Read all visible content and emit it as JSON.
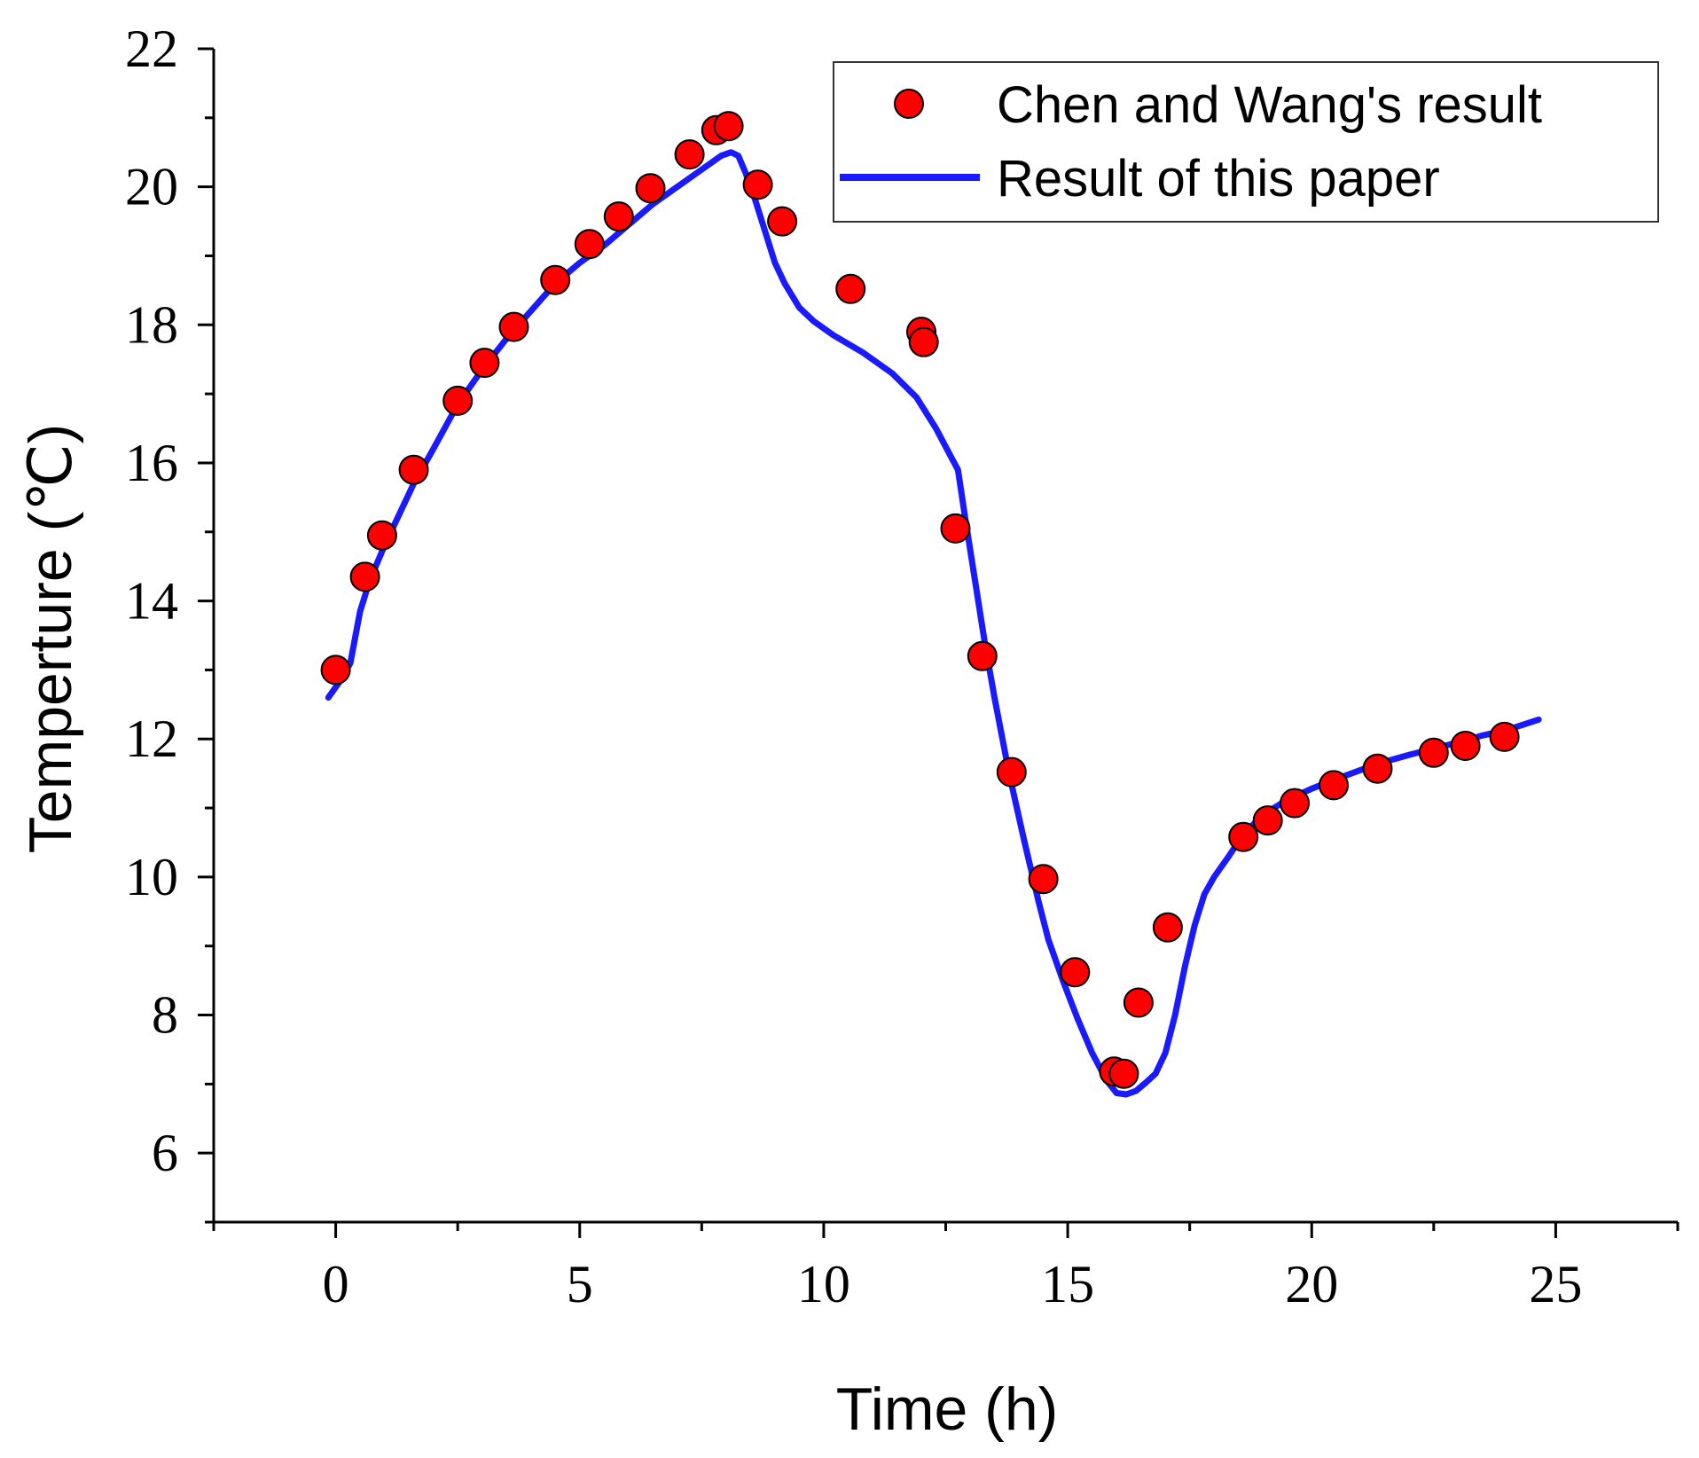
{
  "chart_data": {
    "type": "scatter+line",
    "xlabel": "Time (h)",
    "ylabel": "Temperture (℃)",
    "xlim": [
      -2.5,
      27.5
    ],
    "ylim": [
      5,
      22
    ],
    "x_ticks": [
      0,
      5,
      10,
      15,
      20,
      25
    ],
    "y_ticks": [
      6,
      8,
      10,
      12,
      14,
      16,
      18,
      20,
      22
    ],
    "legend_position": "top-right",
    "colors": {
      "points": "#ff0000",
      "line": "#1a1aff",
      "axis": "#000000"
    },
    "series": [
      {
        "name": "Chen and Wang's result",
        "kind": "scatter",
        "x": [
          0.0,
          0.6,
          0.95,
          1.6,
          2.5,
          3.05,
          3.65,
          4.5,
          5.2,
          5.8,
          6.45,
          7.25,
          7.8,
          8.05,
          8.65,
          9.15,
          10.55,
          12.0,
          12.05,
          12.7,
          13.25,
          13.85,
          14.5,
          15.15,
          15.95,
          16.15,
          16.45,
          17.05,
          18.6,
          19.1,
          19.65,
          20.45,
          21.35,
          22.5,
          23.15,
          23.95
        ],
        "y": [
          13.0,
          14.35,
          14.95,
          15.9,
          16.9,
          17.45,
          17.97,
          18.65,
          19.17,
          19.57,
          19.98,
          20.47,
          20.82,
          20.88,
          20.03,
          19.5,
          18.52,
          17.9,
          17.75,
          15.05,
          13.2,
          11.52,
          9.97,
          8.62,
          7.18,
          7.15,
          8.18,
          9.27,
          10.58,
          10.82,
          11.07,
          11.33,
          11.57,
          11.8,
          11.9,
          12.03
        ]
      },
      {
        "name": "Result of this paper",
        "kind": "line",
        "x": [
          -0.15,
          0.1,
          0.3,
          0.5,
          0.7,
          1.0,
          1.3,
          1.6,
          2.0,
          2.5,
          3.0,
          3.5,
          4.0,
          4.5,
          5.0,
          5.5,
          6.0,
          6.5,
          7.0,
          7.5,
          7.9,
          8.1,
          8.25,
          8.4,
          8.6,
          8.8,
          9.0,
          9.2,
          9.5,
          9.8,
          10.2,
          10.8,
          11.4,
          11.9,
          12.3,
          12.6,
          12.75,
          12.9,
          13.1,
          13.3,
          13.5,
          13.8,
          14.1,
          14.4,
          14.6,
          14.9,
          15.2,
          15.5,
          15.8,
          16.0,
          16.2,
          16.4,
          16.6,
          16.8,
          17.0,
          17.2,
          17.4,
          17.6,
          17.8,
          18.0,
          18.3,
          18.6,
          19.0,
          19.5,
          20.0,
          20.5,
          21.0,
          21.5,
          22.0,
          22.5,
          23.0,
          23.5,
          24.0,
          24.3,
          24.65
        ],
        "y": [
          12.6,
          12.85,
          13.1,
          13.85,
          14.3,
          14.8,
          15.25,
          15.7,
          16.2,
          16.85,
          17.35,
          17.8,
          18.2,
          18.6,
          18.9,
          19.15,
          19.45,
          19.75,
          20.0,
          20.25,
          20.45,
          20.5,
          20.45,
          20.2,
          19.8,
          19.35,
          18.9,
          18.6,
          18.25,
          18.05,
          17.85,
          17.6,
          17.3,
          16.95,
          16.5,
          16.1,
          15.9,
          15.2,
          14.3,
          13.4,
          12.6,
          11.5,
          10.55,
          9.65,
          9.1,
          8.5,
          7.95,
          7.45,
          7.05,
          6.87,
          6.85,
          6.9,
          7.02,
          7.15,
          7.45,
          8.0,
          8.7,
          9.3,
          9.75,
          10.0,
          10.3,
          10.62,
          10.9,
          11.12,
          11.28,
          11.42,
          11.55,
          11.67,
          11.77,
          11.86,
          11.95,
          12.05,
          12.13,
          12.2,
          12.28
        ]
      }
    ]
  }
}
